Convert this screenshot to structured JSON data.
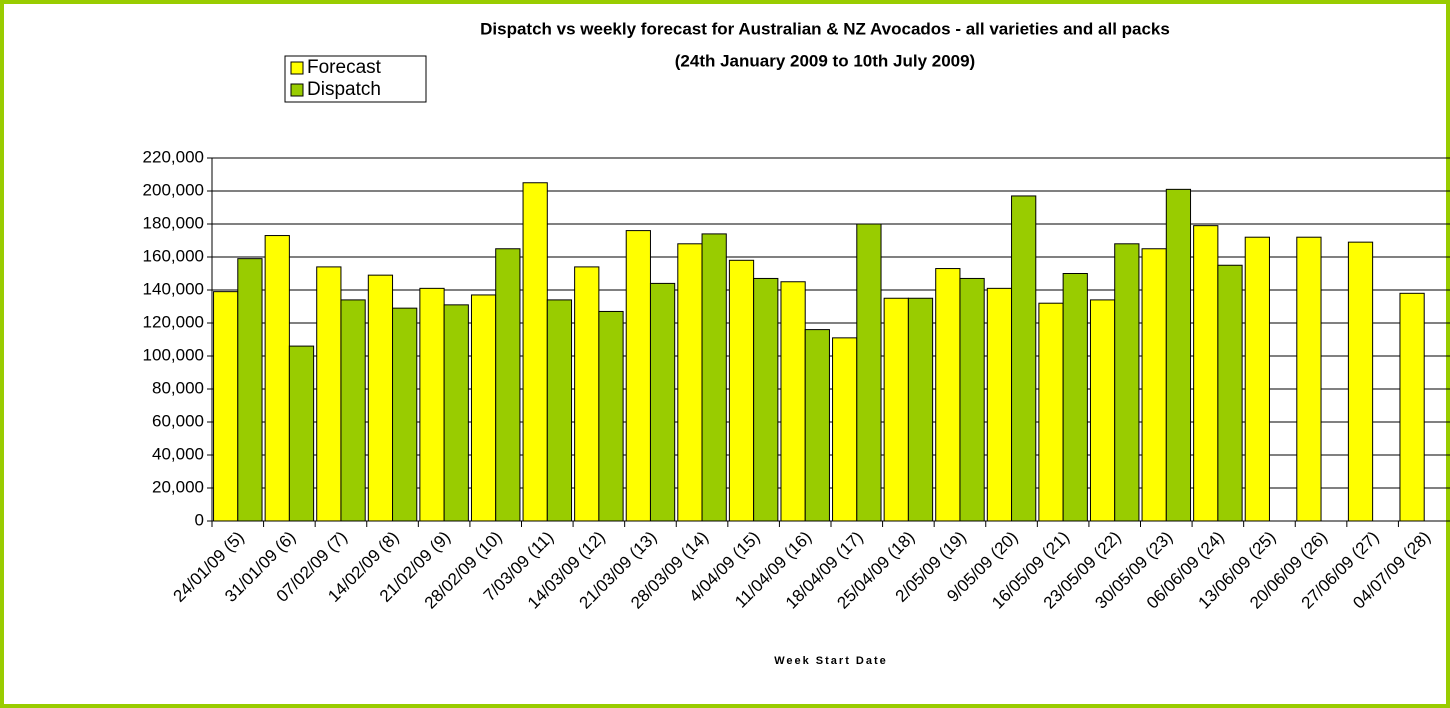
{
  "chart_data": {
    "type": "bar",
    "title": "Dispatch vs weekly forecast for Australian & NZ Avocados - all varieties and all packs",
    "subtitle": "(24th January 2009 to 10th July 2009)",
    "x_label": "Week Start Date",
    "categories": [
      "24/01/09 (5)",
      "31/01/09 (6)",
      "07/02/09 (7)",
      "14/02/09 (8)",
      "21/02/09 (9)",
      "28/02/09 (10)",
      "7/03/09 (11)",
      "14/03/09 (12)",
      "21/03/09 (13)",
      "28/03/09 (14)",
      "4/04/09 (15)",
      "11/04/09 (16)",
      "18/04/09 (17)",
      "25/04/09 (18)",
      "2/05/09 (19)",
      "9/05/09 (20)",
      "16/05/09 (21)",
      "23/05/09 (22)",
      "30/05/09 (23)",
      "06/06/09 (24)",
      "13/06/09 (25)",
      "20/06/09 (26)",
      "27/06/09 (27)",
      "04/07/09 (28)"
    ],
    "series": [
      {
        "name": "Forecast",
        "color": "#ffff00",
        "values": [
          139000,
          173000,
          154000,
          149000,
          141000,
          137000,
          205000,
          154000,
          176000,
          168000,
          158000,
          145000,
          111000,
          135000,
          153000,
          141000,
          132000,
          134000,
          165000,
          179000,
          172000,
          172000,
          169000,
          138000
        ]
      },
      {
        "name": "Dispatch",
        "color": "#99cc00",
        "values": [
          159000,
          106000,
          134000,
          129000,
          131000,
          165000,
          134000,
          127000,
          144000,
          174000,
          147000,
          116000,
          180000,
          135000,
          147000,
          197000,
          150000,
          168000,
          201000,
          155000,
          null,
          null,
          null,
          null
        ]
      }
    ],
    "ylim": [
      0,
      220000
    ],
    "yticks": [
      0,
      {
        "value": 20000,
        "label": "20,000"
      },
      {
        "value": 40000,
        "label": "40,000"
      },
      {
        "value": 60000,
        "label": "60,000"
      },
      {
        "value": 80000,
        "label": "80,000"
      },
      {
        "value": 100000,
        "label": "100,000"
      },
      {
        "value": 120000,
        "label": "120,000"
      },
      {
        "value": 140000,
        "label": "140,000"
      },
      {
        "value": 160000,
        "label": "160,000"
      },
      {
        "value": 180000,
        "label": "180,000"
      },
      {
        "value": 200000,
        "label": "200,000"
      },
      {
        "value": 220000,
        "label": "220,000"
      }
    ],
    "grid": true,
    "legend": "top-left"
  }
}
